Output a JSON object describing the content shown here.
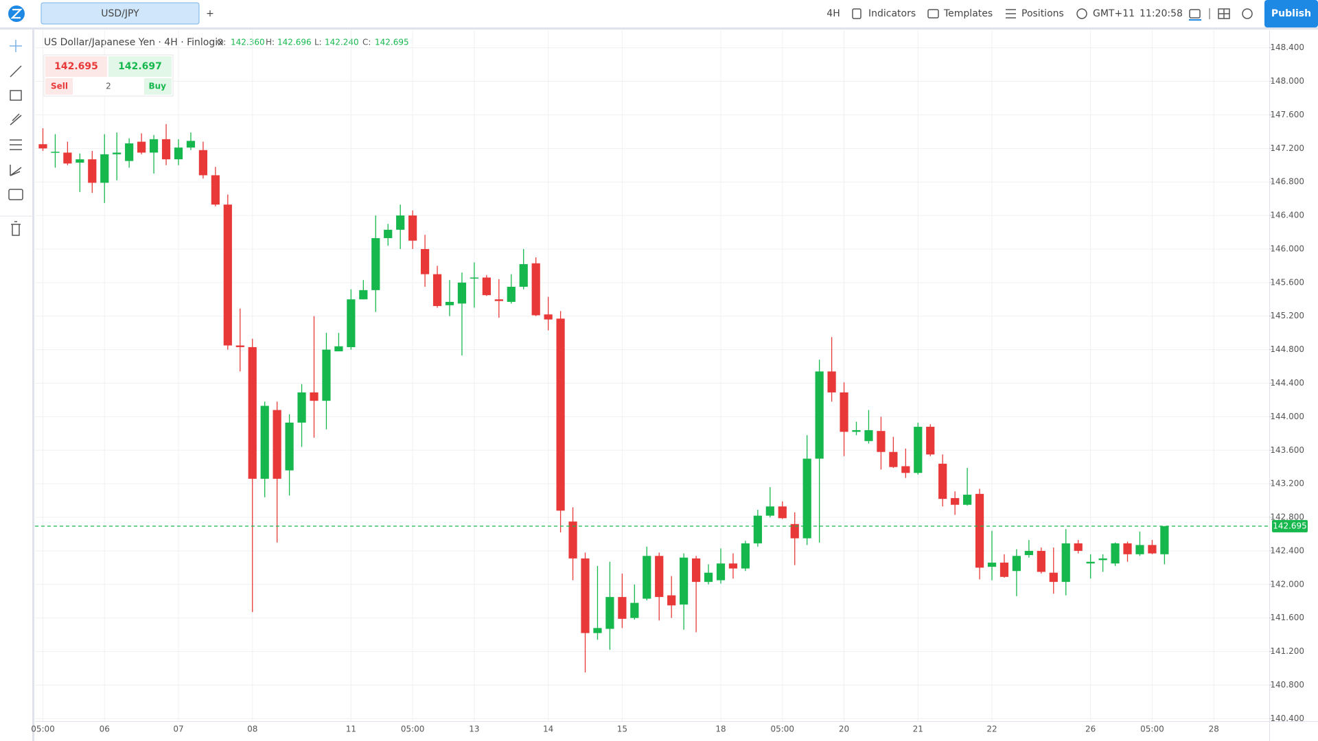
{
  "toolbar": {
    "tab": "USD/JPY",
    "add_tab": "+",
    "interval": "4H",
    "indicators": "Indicators",
    "templates": "Templates",
    "positions": "Positions",
    "timezone": "GMT+11",
    "clock": "11:20:58",
    "publish": "Publish"
  },
  "trade": {
    "sell_price": "142.695",
    "buy_price": "142.697",
    "sell": "Sell",
    "quantity": "2",
    "buy": "Buy"
  },
  "chart_data": {
    "type": "candlestick",
    "title": "US Dollar/Japanese Yen · 4H · Finlogix",
    "ohlc_header": {
      "o_label": "O:",
      "o": "142.360",
      "h_label": "H:",
      "h": "142.696",
      "l_label": "L:",
      "l": "142.240",
      "c_label": "C:",
      "c": "142.695"
    },
    "up_color": "#16b84d",
    "down_color": "#e83838",
    "grid": true,
    "open": [
      147.25,
      147.15,
      147.15,
      147.03,
      147.07,
      146.79,
      147.13,
      147.05,
      147.28,
      147.15,
      147.31,
      147.07,
      147.21,
      147.18,
      146.88,
      146.53,
      144.85,
      144.83,
      143.26,
      144.08,
      143.36,
      143.93,
      144.29,
      144.19,
      144.78,
      144.83,
      145.4,
      145.51,
      146.13,
      146.23,
      146.4,
      146.0,
      145.7,
      145.33,
      145.35,
      145.65,
      145.66,
      145.4,
      145.37,
      145.55,
      145.83,
      145.22,
      145.17,
      142.75,
      142.31,
      141.42,
      141.47,
      141.85,
      141.6,
      141.83,
      142.34,
      141.87,
      141.76,
      142.31,
      142.03,
      142.05,
      142.25,
      142.19,
      142.49,
      142.82,
      142.93,
      142.72,
      142.55,
      143.5,
      144.54,
      144.29,
      143.82,
      143.71,
      143.83,
      143.58,
      143.41,
      143.33,
      143.88,
      143.44,
      143.03,
      142.95,
      143.08,
      142.21,
      142.26,
      142.16,
      142.35,
      142.4,
      142.14,
      142.03,
      142.49,
      142.25,
      142.29,
      142.25,
      142.49,
      142.36,
      142.47,
      142.36
    ],
    "high": [
      147.44,
      147.37,
      147.28,
      147.14,
      147.17,
      147.37,
      147.39,
      147.32,
      147.38,
      147.36,
      147.49,
      147.31,
      147.39,
      147.28,
      146.98,
      146.65,
      145.29,
      144.93,
      144.18,
      144.18,
      144.03,
      144.39,
      145.2,
      145.0,
      145.0,
      145.52,
      145.63,
      146.4,
      146.3,
      146.53,
      146.46,
      146.17,
      145.8,
      145.63,
      145.72,
      145.84,
      145.69,
      145.64,
      145.7,
      146.0,
      145.9,
      145.43,
      145.26,
      142.92,
      142.38,
      142.22,
      142.27,
      142.13,
      142.0,
      142.45,
      142.38,
      142.1,
      142.37,
      142.34,
      142.24,
      142.43,
      142.37,
      142.52,
      142.89,
      143.16,
      142.99,
      142.86,
      143.78,
      144.68,
      144.95,
      144.41,
      143.94,
      144.08,
      144.0,
      143.76,
      143.62,
      143.93,
      143.91,
      143.55,
      143.11,
      143.39,
      143.14,
      142.64,
      142.36,
      142.42,
      142.53,
      142.44,
      142.44,
      142.66,
      142.53,
      142.36,
      142.36,
      142.5,
      142.51,
      142.63,
      142.53,
      142.696
    ],
    "low": [
      147.17,
      146.97,
      147.0,
      146.68,
      146.67,
      146.55,
      146.82,
      146.97,
      147.13,
      146.9,
      147.0,
      147.0,
      147.18,
      146.84,
      146.51,
      144.8,
      144.54,
      141.67,
      143.04,
      142.5,
      143.06,
      143.64,
      143.75,
      143.85,
      144.78,
      144.8,
      145.4,
      145.25,
      146.04,
      146.0,
      146.0,
      145.55,
      145.3,
      145.2,
      144.73,
      145.3,
      145.44,
      145.18,
      145.35,
      145.52,
      145.2,
      145.03,
      142.62,
      142.05,
      140.95,
      141.34,
      141.22,
      141.48,
      141.58,
      141.81,
      141.57,
      141.6,
      141.46,
      141.43,
      142.0,
      142.01,
      142.07,
      142.16,
      142.45,
      142.8,
      142.78,
      142.23,
      142.47,
      142.5,
      144.18,
      143.53,
      143.78,
      143.68,
      143.37,
      143.39,
      143.27,
      143.31,
      143.53,
      142.93,
      142.83,
      142.94,
      142.06,
      142.05,
      142.08,
      141.86,
      142.32,
      142.13,
      141.89,
      141.87,
      142.37,
      142.07,
      142.15,
      142.22,
      142.27,
      142.34,
      142.36,
      142.24
    ],
    "close": [
      147.2,
      147.16,
      147.02,
      147.07,
      146.79,
      147.13,
      147.15,
      147.26,
      147.15,
      147.31,
      147.07,
      147.21,
      147.29,
      146.88,
      146.53,
      144.85,
      144.83,
      143.26,
      144.13,
      143.26,
      143.93,
      144.29,
      144.19,
      144.8,
      144.84,
      145.4,
      145.51,
      146.13,
      146.23,
      146.4,
      146.1,
      145.7,
      145.32,
      145.37,
      145.6,
      145.66,
      145.45,
      145.38,
      145.55,
      145.82,
      145.21,
      145.16,
      142.88,
      142.31,
      141.42,
      141.48,
      141.85,
      141.59,
      141.78,
      142.34,
      141.85,
      141.75,
      142.32,
      142.03,
      142.14,
      142.25,
      142.19,
      142.49,
      142.82,
      142.93,
      142.79,
      142.55,
      143.5,
      144.54,
      144.29,
      143.82,
      143.84,
      143.84,
      143.58,
      143.4,
      143.33,
      143.88,
      143.55,
      143.02,
      142.95,
      143.07,
      142.2,
      142.26,
      142.09,
      142.34,
      142.4,
      142.15,
      142.03,
      142.49,
      142.4,
      142.27,
      142.31,
      142.49,
      142.36,
      142.47,
      142.37,
      142.695
    ],
    "last_price": {
      "value": 142.695,
      "label": "142.695"
    },
    "xlim": [
      -0.64,
      99.5
    ],
    "xticks": [
      {
        "value": 0,
        "label": "05:00"
      },
      {
        "value": 5,
        "label": "06"
      },
      {
        "value": 11,
        "label": "07"
      },
      {
        "value": 17,
        "label": "08"
      },
      {
        "value": 25,
        "label": "11"
      },
      {
        "value": 30,
        "label": "05:00"
      },
      {
        "value": 35,
        "label": "13"
      },
      {
        "value": 41,
        "label": "14"
      },
      {
        "value": 47,
        "label": "15"
      },
      {
        "value": 55,
        "label": "18"
      },
      {
        "value": 60,
        "label": "05:00"
      },
      {
        "value": 65,
        "label": "20"
      },
      {
        "value": 71,
        "label": "21"
      },
      {
        "value": 77,
        "label": "22"
      },
      {
        "value": 85,
        "label": "26"
      },
      {
        "value": 90,
        "label": "05:00"
      },
      {
        "value": 95,
        "label": "28"
      }
    ],
    "ylim": [
      140.37,
      148.61
    ],
    "yticks": [
      {
        "value": 140.4,
        "label": "140.400"
      },
      {
        "value": 140.8,
        "label": "140.800"
      },
      {
        "value": 141.2,
        "label": "141.200"
      },
      {
        "value": 141.6,
        "label": "141.600"
      },
      {
        "value": 142.0,
        "label": "142.000"
      },
      {
        "value": 142.4,
        "label": "142.400"
      },
      {
        "value": 142.8,
        "label": "142.800"
      },
      {
        "value": 143.2,
        "label": "143.200"
      },
      {
        "value": 143.6,
        "label": "143.600"
      },
      {
        "value": 144.0,
        "label": "144.000"
      },
      {
        "value": 144.4,
        "label": "144.400"
      },
      {
        "value": 144.8,
        "label": "144.800"
      },
      {
        "value": 145.2,
        "label": "145.200"
      },
      {
        "value": 145.6,
        "label": "145.600"
      },
      {
        "value": 146.0,
        "label": "146.000"
      },
      {
        "value": 146.4,
        "label": "146.400"
      },
      {
        "value": 146.8,
        "label": "146.800"
      },
      {
        "value": 147.2,
        "label": "147.200"
      },
      {
        "value": 147.6,
        "label": "147.600"
      },
      {
        "value": 148.0,
        "label": "148.000"
      },
      {
        "value": 148.4,
        "label": "148.400"
      }
    ]
  }
}
